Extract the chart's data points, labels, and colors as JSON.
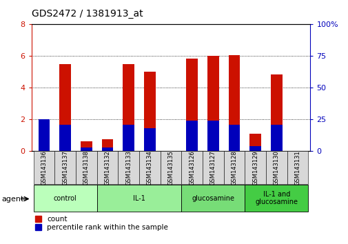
{
  "title": "GDS2472 / 1381913_at",
  "samples": [
    "GSM143136",
    "GSM143137",
    "GSM143138",
    "GSM143132",
    "GSM143133",
    "GSM143134",
    "GSM143135",
    "GSM143126",
    "GSM143127",
    "GSM143128",
    "GSM143129",
    "GSM143130",
    "GSM143131"
  ],
  "count_values": [
    1.55,
    5.5,
    0.65,
    0.75,
    5.5,
    5.0,
    0.0,
    5.85,
    6.0,
    6.05,
    1.1,
    4.85,
    0.0
  ],
  "percentile_values_right": [
    25,
    21,
    3,
    3,
    21,
    18,
    0,
    24,
    24,
    21,
    4,
    21,
    0
  ],
  "ylim_left": [
    0,
    8
  ],
  "ylim_right": [
    0,
    100
  ],
  "yticks_left": [
    0,
    2,
    4,
    6,
    8
  ],
  "yticks_right": [
    0,
    25,
    50,
    75,
    100
  ],
  "groups": [
    {
      "label": "control",
      "start": 0,
      "end": 3,
      "color": "#bbffbb"
    },
    {
      "label": "IL-1",
      "start": 3,
      "end": 7,
      "color": "#99ee99"
    },
    {
      "label": "glucosamine",
      "start": 7,
      "end": 10,
      "color": "#77dd77"
    },
    {
      "label": "IL-1 and\nglucosamine",
      "start": 10,
      "end": 13,
      "color": "#44cc44"
    }
  ],
  "bar_color": "#cc1100",
  "percentile_color": "#0000bb",
  "bar_width": 0.55,
  "left_axis_color": "#cc1100",
  "right_axis_color": "#0000bb",
  "agent_label": "agent",
  "legend_count": "count",
  "legend_percentile": "percentile rank within the sample"
}
